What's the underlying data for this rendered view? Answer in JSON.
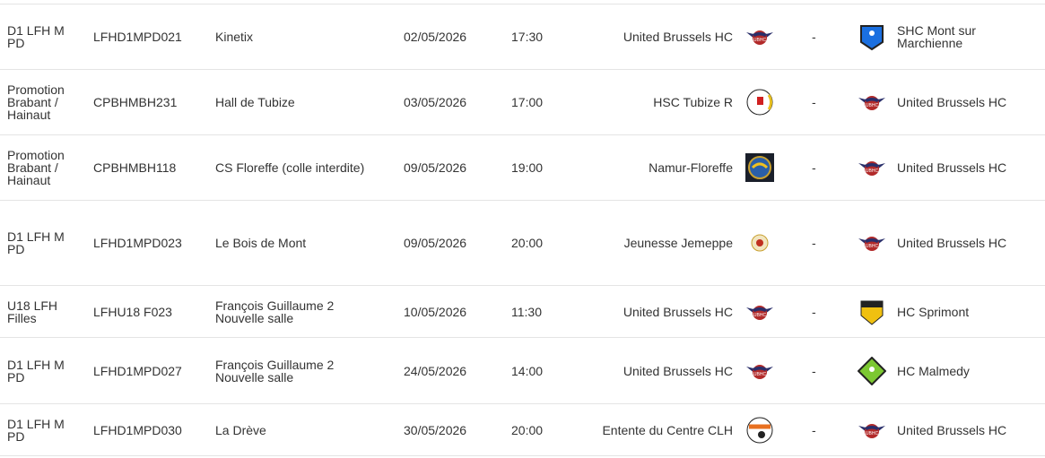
{
  "matches": [
    {
      "competition": "D1 LFH M PD",
      "code": "LFHD1MPD021",
      "venue": "Kinetix",
      "date": "02/05/2026",
      "time": "17:30",
      "home": "United Brussels HC",
      "home_logo": "ubhc",
      "score": "-",
      "away": "SHC Mont sur Marchienne",
      "away_logo": "shc"
    },
    {
      "competition": "Promotion Brabant / Hainaut",
      "code": "CPBHMBH231",
      "venue": "Hall de Tubize",
      "date": "03/05/2026",
      "time": "17:00",
      "home": "HSC Tubize R",
      "home_logo": "tubize",
      "score": "-",
      "away": "United Brussels HC",
      "away_logo": "ubhc"
    },
    {
      "competition": "Promotion Brabant / Hainaut",
      "code": "CPBHMBH118",
      "venue": "CS Floreffe (colle interdite)",
      "date": "09/05/2026",
      "time": "19:00",
      "home": "Namur-Floreffe",
      "home_logo": "namur",
      "score": "-",
      "away": "United Brussels HC",
      "away_logo": "ubhc"
    },
    {
      "competition": "D1 LFH M PD",
      "code": "LFHD1MPD023",
      "venue": "Le Bois de Mont",
      "date": "09/05/2026",
      "time": "20:00",
      "home": "Jeunesse Jemeppe",
      "home_logo": "jemeppe",
      "score": "-",
      "away": "United Brussels HC",
      "away_logo": "ubhc"
    },
    {
      "competition": "U18 LFH Filles",
      "code": "LFHU18 F023",
      "venue": "François Guillaume 2 Nouvelle salle",
      "date": "10/05/2026",
      "time": "11:30",
      "home": "United Brussels HC",
      "home_logo": "ubhc",
      "score": "-",
      "away": "HC Sprimont",
      "away_logo": "sprimont"
    },
    {
      "competition": "D1 LFH M PD",
      "code": "LFHD1MPD027",
      "venue": "François Guillaume 2 Nouvelle salle",
      "date": "24/05/2026",
      "time": "14:00",
      "home": "United Brussels HC",
      "home_logo": "ubhc",
      "score": "-",
      "away": "HC Malmedy",
      "away_logo": "malmedy"
    },
    {
      "competition": "D1 LFH M PD",
      "code": "LFHD1MPD030",
      "venue": "La Drève",
      "date": "30/05/2026",
      "time": "20:00",
      "home": "Entente du Centre CLH",
      "home_logo": "clh",
      "score": "-",
      "away": "United Brussels HC",
      "away_logo": "ubhc"
    }
  ]
}
